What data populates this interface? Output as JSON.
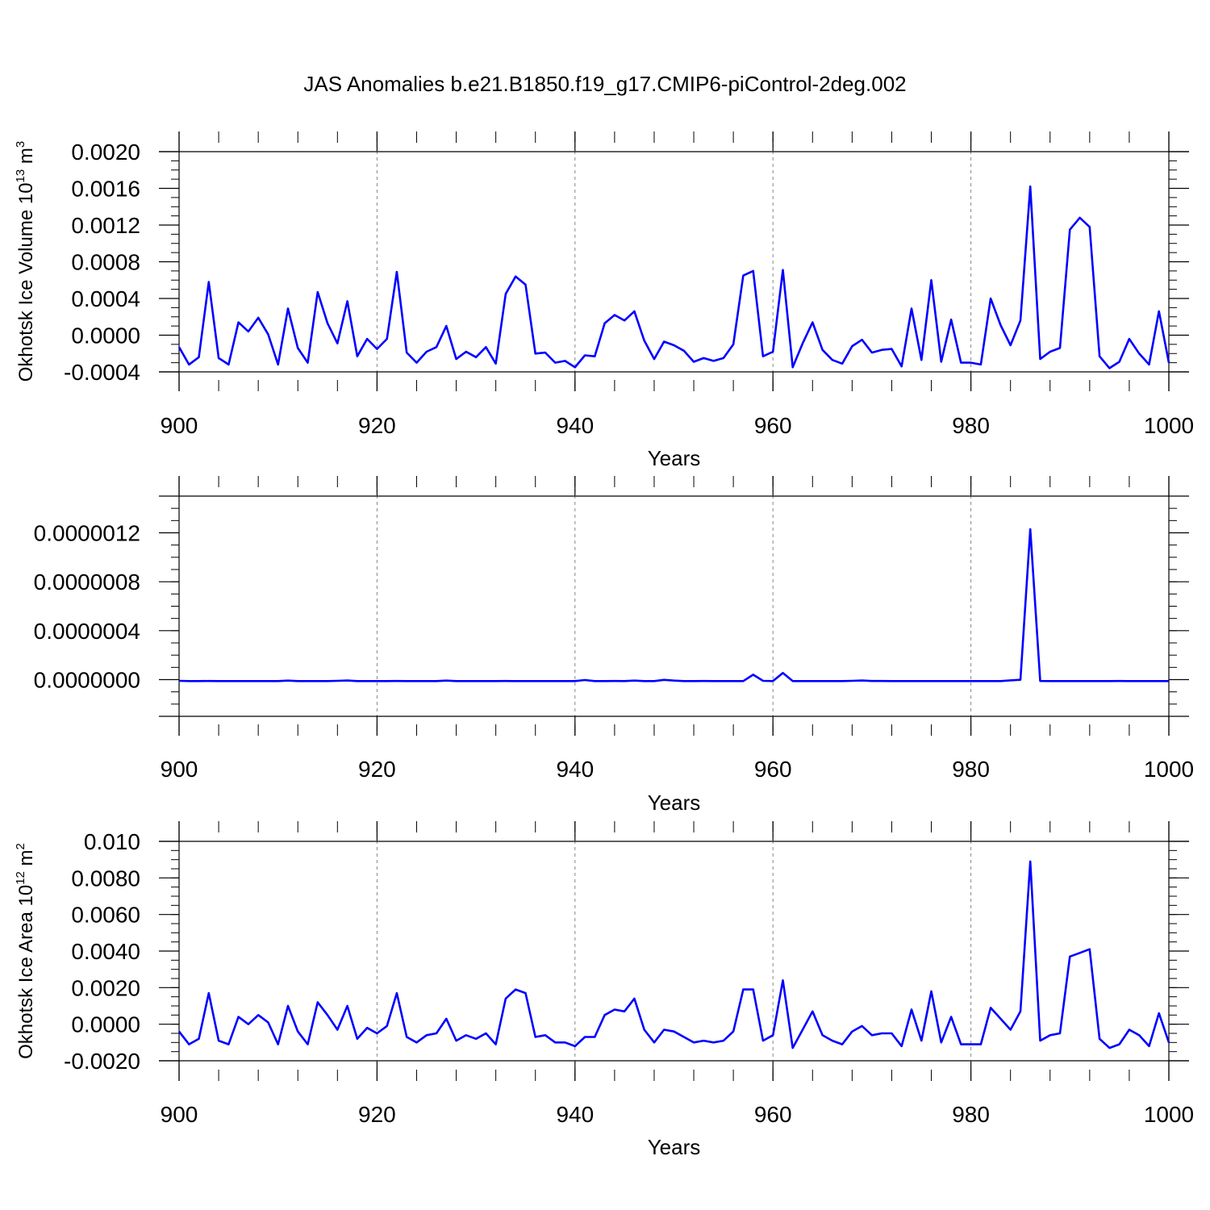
{
  "title": "JAS Anomalies b.e21.B1850.f19_g17.CMIP6-piControl-2deg.002",
  "colors": {
    "series": "#0000ff",
    "axis": "#000000",
    "grid": "#888888"
  },
  "chart_data": [
    {
      "type": "line",
      "ylabel_main": "Okhotsk Ice Volume 10",
      "ylabel_sup": "13",
      "ylabel_unit": "m",
      "ylabel_unit_sup": "3",
      "xlabel": "Years",
      "xlim": [
        900,
        1000
      ],
      "ylim": [
        -0.0004,
        0.002
      ],
      "xticks": [
        900,
        920,
        940,
        960,
        980,
        1000
      ],
      "xtick_labels": [
        "900",
        "920",
        "940",
        "960",
        "980",
        "1000"
      ],
      "yticks": [
        -0.0004,
        0.0,
        0.0004,
        0.0008,
        0.0012,
        0.0016,
        0.002
      ],
      "ytick_labels": [
        "-0.0004",
        "0.0000",
        "0.0004",
        "0.0008",
        "0.0012",
        "0.0016",
        "0.0020"
      ],
      "grid": "vertical dashed",
      "x": [
        900,
        901,
        902,
        903,
        904,
        905,
        906,
        907,
        908,
        909,
        910,
        911,
        912,
        913,
        914,
        915,
        916,
        917,
        918,
        919,
        920,
        921,
        922,
        923,
        924,
        925,
        926,
        927,
        928,
        929,
        930,
        931,
        932,
        933,
        934,
        935,
        936,
        937,
        938,
        939,
        940,
        941,
        942,
        943,
        944,
        945,
        946,
        947,
        948,
        949,
        950,
        951,
        952,
        953,
        954,
        955,
        956,
        957,
        958,
        959,
        960,
        961,
        962,
        963,
        964,
        965,
        966,
        967,
        968,
        969,
        970,
        971,
        972,
        973,
        974,
        975,
        976,
        977,
        978,
        979,
        980,
        981,
        982,
        983,
        984,
        985,
        986,
        987,
        988,
        989,
        990,
        991,
        992,
        993,
        994,
        995,
        996,
        997,
        998,
        999,
        1000
      ],
      "series": [
        {
          "name": "",
          "values": [
            -0.00013,
            -0.00032,
            -0.00024,
            0.00058,
            -0.00025,
            -0.00032,
            0.00014,
            4e-05,
            0.00019,
            1e-05,
            -0.00032,
            0.00029,
            -0.00014,
            -0.0003,
            0.00047,
            0.00013,
            -9e-05,
            0.00037,
            -0.00023,
            -4e-05,
            -0.00015,
            -4e-05,
            0.00069,
            -0.00019,
            -0.0003,
            -0.00018,
            -0.00013,
            0.0001,
            -0.00026,
            -0.00018,
            -0.00024,
            -0.00013,
            -0.00031,
            0.00045,
            0.00064,
            0.00055,
            -0.0002,
            -0.00019,
            -0.0003,
            -0.00028,
            -0.00035,
            -0.00022,
            -0.00023,
            0.00013,
            0.00022,
            0.00016,
            0.00026,
            -6e-05,
            -0.00026,
            -7e-05,
            -0.00011,
            -0.00017,
            -0.00029,
            -0.00025,
            -0.00028,
            -0.00025,
            -0.0001,
            0.00065,
            0.0007,
            -0.00023,
            -0.00018,
            0.00071,
            -0.00035,
            -9e-05,
            0.00014,
            -0.00016,
            -0.00027,
            -0.00031,
            -0.00012,
            -5e-05,
            -0.00019,
            -0.00016,
            -0.00015,
            -0.00034,
            0.00029,
            -0.00027,
            0.0006,
            -0.00029,
            0.00017,
            -0.0003,
            -0.0003,
            -0.00032,
            0.0004,
            0.00011,
            -0.00011,
            0.00016,
            0.00162,
            -0.00026,
            -0.00018,
            -0.00014,
            0.00115,
            0.00128,
            0.00118,
            -0.00023,
            -0.00036,
            -0.00029,
            -4e-05,
            -0.0002,
            -0.00032,
            0.00026,
            -0.0003
          ]
        }
      ]
    },
    {
      "type": "line",
      "ylabel_main": "",
      "ylabel_sup": "",
      "ylabel_unit": "",
      "ylabel_unit_sup": "",
      "xlabel": "Years",
      "xlim": [
        900,
        1000
      ],
      "ylim": [
        -3e-07,
        1.5e-06
      ],
      "xticks": [
        900,
        920,
        940,
        960,
        980,
        1000
      ],
      "xtick_labels": [
        "900",
        "920",
        "940",
        "960",
        "980",
        "1000"
      ],
      "yticks": [
        0.0,
        4e-07,
        8e-07,
        1.2e-06
      ],
      "ytick_labels": [
        "0.0000000",
        "0.0000004",
        "0.0000008",
        "0.0000012"
      ],
      "grid": "vertical dashed",
      "x": [
        900,
        901,
        902,
        903,
        904,
        905,
        906,
        907,
        908,
        909,
        910,
        911,
        912,
        913,
        914,
        915,
        916,
        917,
        918,
        919,
        920,
        921,
        922,
        923,
        924,
        925,
        926,
        927,
        928,
        929,
        930,
        931,
        932,
        933,
        934,
        935,
        936,
        937,
        938,
        939,
        940,
        941,
        942,
        943,
        944,
        945,
        946,
        947,
        948,
        949,
        950,
        951,
        952,
        953,
        954,
        955,
        956,
        957,
        958,
        959,
        960,
        961,
        962,
        963,
        964,
        965,
        966,
        967,
        968,
        969,
        970,
        971,
        972,
        973,
        974,
        975,
        976,
        977,
        978,
        979,
        980,
        981,
        982,
        983,
        984,
        985,
        986,
        987,
        988,
        989,
        990,
        991,
        992,
        993,
        994,
        995,
        996,
        997,
        998,
        999,
        1000
      ],
      "series": [
        {
          "name": "",
          "values": [
            -1e-08,
            -1.2e-08,
            -1.2e-08,
            -1.1e-08,
            -1.2e-08,
            -1.2e-08,
            -1.2e-08,
            -1.2e-08,
            -1.2e-08,
            -1.2e-08,
            -1.2e-08,
            -8e-09,
            -1.2e-08,
            -1.2e-08,
            -1.2e-08,
            -1.2e-08,
            -1e-08,
            -7e-09,
            -1.2e-08,
            -1.2e-08,
            -1.2e-08,
            -1.2e-08,
            -1.1e-08,
            -1.2e-08,
            -1.2e-08,
            -1.2e-08,
            -1.2e-08,
            -8e-09,
            -1.2e-08,
            -1.2e-08,
            -1.2e-08,
            -1.2e-08,
            -1.2e-08,
            -1.1e-08,
            -1.2e-08,
            -1.2e-08,
            -1.2e-08,
            -1.2e-08,
            -1.2e-08,
            -1.2e-08,
            -1.2e-08,
            -3e-09,
            -1.2e-08,
            -1.2e-08,
            -1.1e-08,
            -1.2e-08,
            -8e-09,
            -1.2e-08,
            -1.2e-08,
            -2e-09,
            -8e-09,
            -1.2e-08,
            -1.2e-08,
            -1.1e-08,
            -1.2e-08,
            -1.2e-08,
            -1.2e-08,
            -1.2e-08,
            4e-08,
            -1e-08,
            -1.2e-08,
            5.5e-08,
            -1.2e-08,
            -1.2e-08,
            -1.2e-08,
            -1.2e-08,
            -1.2e-08,
            -1.2e-08,
            -1e-08,
            -7e-09,
            -1.1e-08,
            -1.1e-08,
            -1.2e-08,
            -1.2e-08,
            -1.2e-08,
            -1.2e-08,
            -1.2e-08,
            -1.2e-08,
            -1.2e-08,
            -1.2e-08,
            -1.2e-08,
            -1.2e-08,
            -1.2e-08,
            -1.2e-08,
            -6e-09,
            -1e-09,
            1.23e-06,
            -1.1e-08,
            -1.2e-08,
            -1.2e-08,
            -1.2e-08,
            -1.2e-08,
            -1.2e-08,
            -1.2e-08,
            -1.2e-08,
            -1.1e-08,
            -1.2e-08,
            -1.2e-08,
            -1.2e-08,
            -1.2e-08,
            -1.2e-08
          ]
        }
      ]
    },
    {
      "type": "line",
      "ylabel_main": "Okhotsk Ice Area 10",
      "ylabel_sup": "12",
      "ylabel_unit": "m",
      "ylabel_unit_sup": "2",
      "xlabel": "Years",
      "xlim": [
        900,
        1000
      ],
      "ylim": [
        -0.002,
        0.01
      ],
      "xticks": [
        900,
        920,
        940,
        960,
        980,
        1000
      ],
      "xtick_labels": [
        "900",
        "920",
        "940",
        "960",
        "980",
        "1000"
      ],
      "yticks": [
        -0.002,
        0.0,
        0.002,
        0.004,
        0.006,
        0.008,
        0.01
      ],
      "ytick_labels": [
        "-0.0020",
        "0.0000",
        "0.0020",
        "0.0040",
        "0.0060",
        "0.0080",
        "0.010"
      ],
      "grid": "vertical dashed",
      "x": [
        900,
        901,
        902,
        903,
        904,
        905,
        906,
        907,
        908,
        909,
        910,
        911,
        912,
        913,
        914,
        915,
        916,
        917,
        918,
        919,
        920,
        921,
        922,
        923,
        924,
        925,
        926,
        927,
        928,
        929,
        930,
        931,
        932,
        933,
        934,
        935,
        936,
        937,
        938,
        939,
        940,
        941,
        942,
        943,
        944,
        945,
        946,
        947,
        948,
        949,
        950,
        951,
        952,
        953,
        954,
        955,
        956,
        957,
        958,
        959,
        960,
        961,
        962,
        963,
        964,
        965,
        966,
        967,
        968,
        969,
        970,
        971,
        972,
        973,
        974,
        975,
        976,
        977,
        978,
        979,
        980,
        981,
        982,
        983,
        984,
        985,
        986,
        987,
        988,
        989,
        990,
        991,
        992,
        993,
        994,
        995,
        996,
        997,
        998,
        999,
        1000
      ],
      "series": [
        {
          "name": "",
          "values": [
            -0.0004,
            -0.0011,
            -0.0008,
            0.0017,
            -0.0009,
            -0.0011,
            0.0004,
            0.0,
            0.0005,
            0.0001,
            -0.0011,
            0.001,
            -0.0004,
            -0.0011,
            0.0012,
            0.0005,
            -0.0003,
            0.001,
            -0.0008,
            -0.0002,
            -0.0005,
            -0.0001,
            0.0017,
            -0.0007,
            -0.001,
            -0.0006,
            -0.0005,
            0.0003,
            -0.0009,
            -0.0006,
            -0.0008,
            -0.0005,
            -0.0011,
            0.0014,
            0.0019,
            0.0017,
            -0.0007,
            -0.0006,
            -0.001,
            -0.001,
            -0.0012,
            -0.0007,
            -0.0007,
            0.0005,
            0.0008,
            0.0007,
            0.0014,
            -0.0003,
            -0.001,
            -0.0003,
            -0.0004,
            -0.0007,
            -0.001,
            -0.0009,
            -0.001,
            -0.0009,
            -0.0004,
            0.0019,
            0.0019,
            -0.0009,
            -0.0006,
            0.0024,
            -0.0013,
            -0.0003,
            0.0007,
            -0.0006,
            -0.0009,
            -0.0011,
            -0.0004,
            -0.0001,
            -0.0006,
            -0.0005,
            -0.0005,
            -0.0012,
            0.0008,
            -0.0009,
            0.0018,
            -0.001,
            0.0004,
            -0.0011,
            -0.0011,
            -0.0011,
            0.0009,
            0.0003,
            -0.0003,
            0.0007,
            0.0089,
            -0.0009,
            -0.0006,
            -0.0005,
            0.0037,
            0.0039,
            0.0041,
            -0.0008,
            -0.0013,
            -0.0011,
            -0.0003,
            -0.0006,
            -0.0012,
            0.0006,
            -0.001
          ]
        }
      ]
    }
  ]
}
